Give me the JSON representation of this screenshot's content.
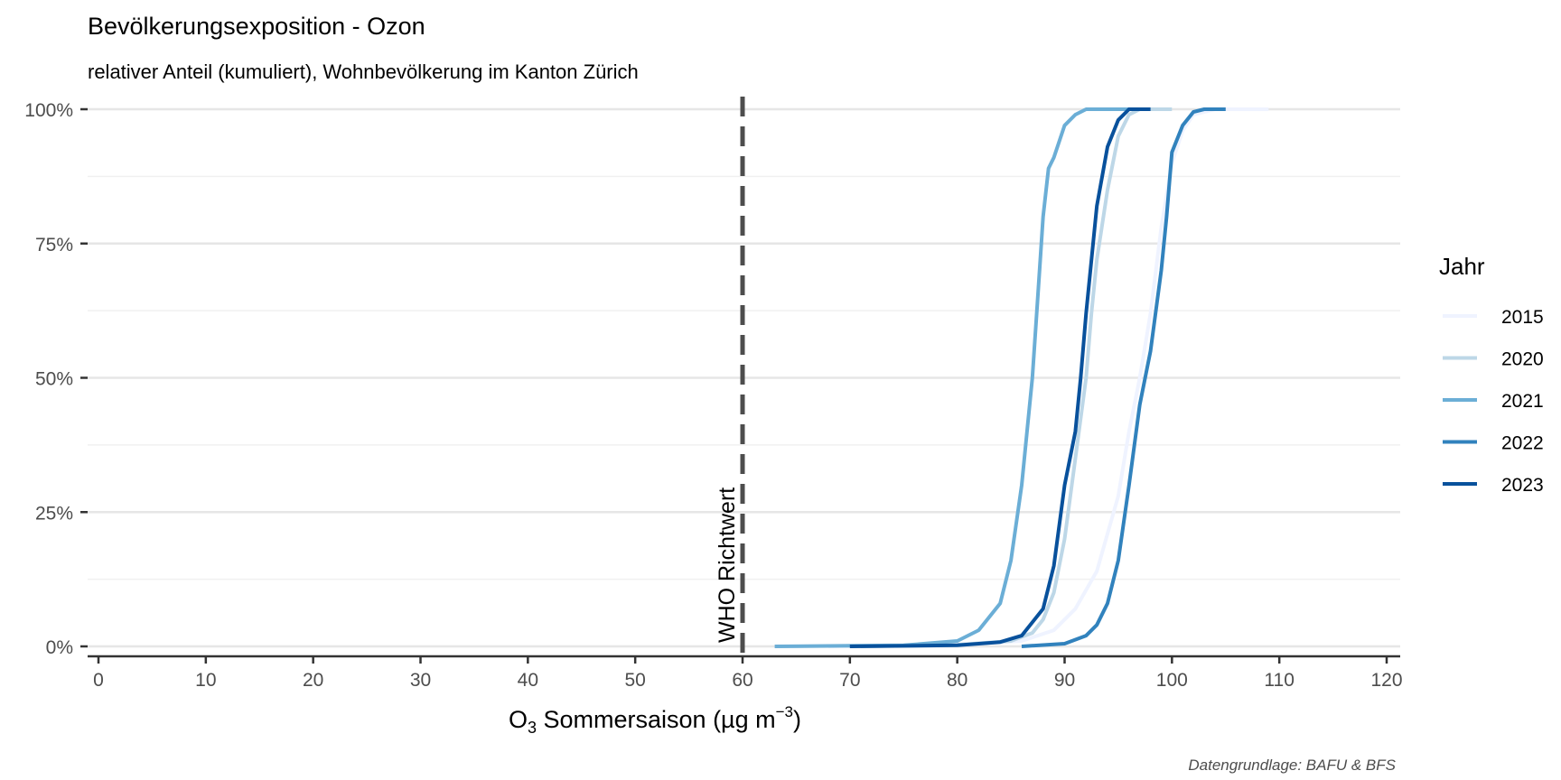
{
  "chart_data": {
    "type": "line",
    "title": "Bevölkerungsexposition - Ozon",
    "subtitle": "relativer Anteil (kumuliert), Wohnbevölkerung im Kanton Zürich",
    "xlabel_main": "O",
    "xlabel_sub": "3",
    "xlabel_rest": " Sommersaison (µg m",
    "xlabel_sup": "−3",
    "xlabel_close": ")",
    "caption": "Datengrundlage: BAFU & BFS",
    "xlim": [
      0,
      120
    ],
    "ylim": [
      0,
      1
    ],
    "x_ticks": [
      0,
      10,
      20,
      30,
      40,
      50,
      60,
      70,
      80,
      90,
      100,
      110,
      120
    ],
    "y_ticks": [
      {
        "value": 0,
        "label": "0%"
      },
      {
        "value": 0.25,
        "label": "25%"
      },
      {
        "value": 0.5,
        "label": "50%"
      },
      {
        "value": 0.75,
        "label": "75%"
      },
      {
        "value": 1,
        "label": "100%"
      }
    ],
    "grid": true,
    "legend_title": "Jahr",
    "legend_position": "right",
    "reference_line": {
      "x": 60,
      "label": "WHO Richtwert",
      "color": "#4d4d4d",
      "style": "dashed"
    },
    "series": [
      {
        "name": "2015",
        "color": "#eff3ff",
        "points": [
          [
            68,
            0
          ],
          [
            80,
            0.003
          ],
          [
            86,
            0.01
          ],
          [
            89,
            0.03
          ],
          [
            91,
            0.07
          ],
          [
            93,
            0.14
          ],
          [
            95,
            0.28
          ],
          [
            96,
            0.4
          ],
          [
            97,
            0.5
          ],
          [
            98,
            0.62
          ],
          [
            99,
            0.78
          ],
          [
            100,
            0.9
          ],
          [
            101,
            0.96
          ],
          [
            102,
            0.99
          ],
          [
            104,
            1
          ],
          [
            109,
            1
          ]
        ]
      },
      {
        "name": "2020",
        "color": "#bdd7e7",
        "points": [
          [
            71,
            0
          ],
          [
            80,
            0.003
          ],
          [
            85,
            0.01
          ],
          [
            87,
            0.025
          ],
          [
            88,
            0.05
          ],
          [
            89,
            0.1
          ],
          [
            90,
            0.2
          ],
          [
            91,
            0.35
          ],
          [
            92,
            0.5
          ],
          [
            92.5,
            0.62
          ],
          [
            93,
            0.72
          ],
          [
            94,
            0.85
          ],
          [
            95,
            0.95
          ],
          [
            96,
            0.99
          ],
          [
            97,
            1
          ],
          [
            100,
            1
          ]
        ]
      },
      {
        "name": "2021",
        "color": "#6baed6",
        "points": [
          [
            63,
            0
          ],
          [
            75,
            0.002
          ],
          [
            80,
            0.01
          ],
          [
            82,
            0.03
          ],
          [
            84,
            0.08
          ],
          [
            85,
            0.16
          ],
          [
            86,
            0.3
          ],
          [
            87,
            0.5
          ],
          [
            87.5,
            0.65
          ],
          [
            88,
            0.8
          ],
          [
            88.5,
            0.89
          ],
          [
            89,
            0.91
          ],
          [
            90,
            0.97
          ],
          [
            91,
            0.99
          ],
          [
            92,
            1
          ],
          [
            96,
            1
          ]
        ]
      },
      {
        "name": "2022",
        "color": "#3182bd",
        "points": [
          [
            86,
            0
          ],
          [
            90,
            0.005
          ],
          [
            92,
            0.02
          ],
          [
            93,
            0.04
          ],
          [
            94,
            0.08
          ],
          [
            95,
            0.16
          ],
          [
            96,
            0.3
          ],
          [
            97,
            0.45
          ],
          [
            98,
            0.55
          ],
          [
            99,
            0.7
          ],
          [
            99.5,
            0.8
          ],
          [
            100,
            0.92
          ],
          [
            101,
            0.97
          ],
          [
            102,
            0.995
          ],
          [
            103,
            1
          ],
          [
            105,
            1
          ]
        ]
      },
      {
        "name": "2023",
        "color": "#08519c",
        "points": [
          [
            70,
            0
          ],
          [
            80,
            0.002
          ],
          [
            84,
            0.008
          ],
          [
            86,
            0.02
          ],
          [
            88,
            0.07
          ],
          [
            89,
            0.15
          ],
          [
            90,
            0.3
          ],
          [
            91,
            0.4
          ],
          [
            91.5,
            0.5
          ],
          [
            92,
            0.62
          ],
          [
            93,
            0.82
          ],
          [
            94,
            0.93
          ],
          [
            95,
            0.98
          ],
          [
            96,
            1
          ],
          [
            98,
            1
          ]
        ]
      }
    ]
  }
}
